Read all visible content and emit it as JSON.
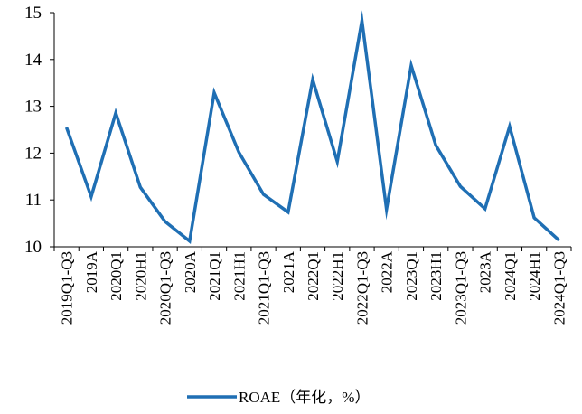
{
  "chart_data": {
    "type": "line",
    "title": "",
    "xlabel": "",
    "ylabel": "",
    "ylim": [
      10,
      15
    ],
    "yticks": [
      10,
      11,
      12,
      13,
      14,
      15
    ],
    "grid": false,
    "legend_position": "bottom",
    "categories": [
      "2019Q1-Q3",
      "2019A",
      "2020Q1",
      "2020H1",
      "2020Q1-Q3",
      "2020A",
      "2021Q1",
      "2021H1",
      "2021Q1-Q3",
      "2021A",
      "2022Q1",
      "2022H1",
      "2022Q1-Q3",
      "2022A",
      "2023Q1",
      "2023H1",
      "2023Q1-Q3",
      "2023A",
      "2024Q1",
      "2024H1",
      "2024Q1-Q3"
    ],
    "series": [
      {
        "name": "ROAE（年化，%）",
        "color": "#1f6fb4",
        "values": [
          12.55,
          11.07,
          12.86,
          11.27,
          10.54,
          10.12,
          13.29,
          12.02,
          11.12,
          10.74,
          13.57,
          11.82,
          14.83,
          10.8,
          13.87,
          12.17,
          11.29,
          10.81,
          12.57,
          10.62,
          10.14
        ]
      }
    ]
  }
}
